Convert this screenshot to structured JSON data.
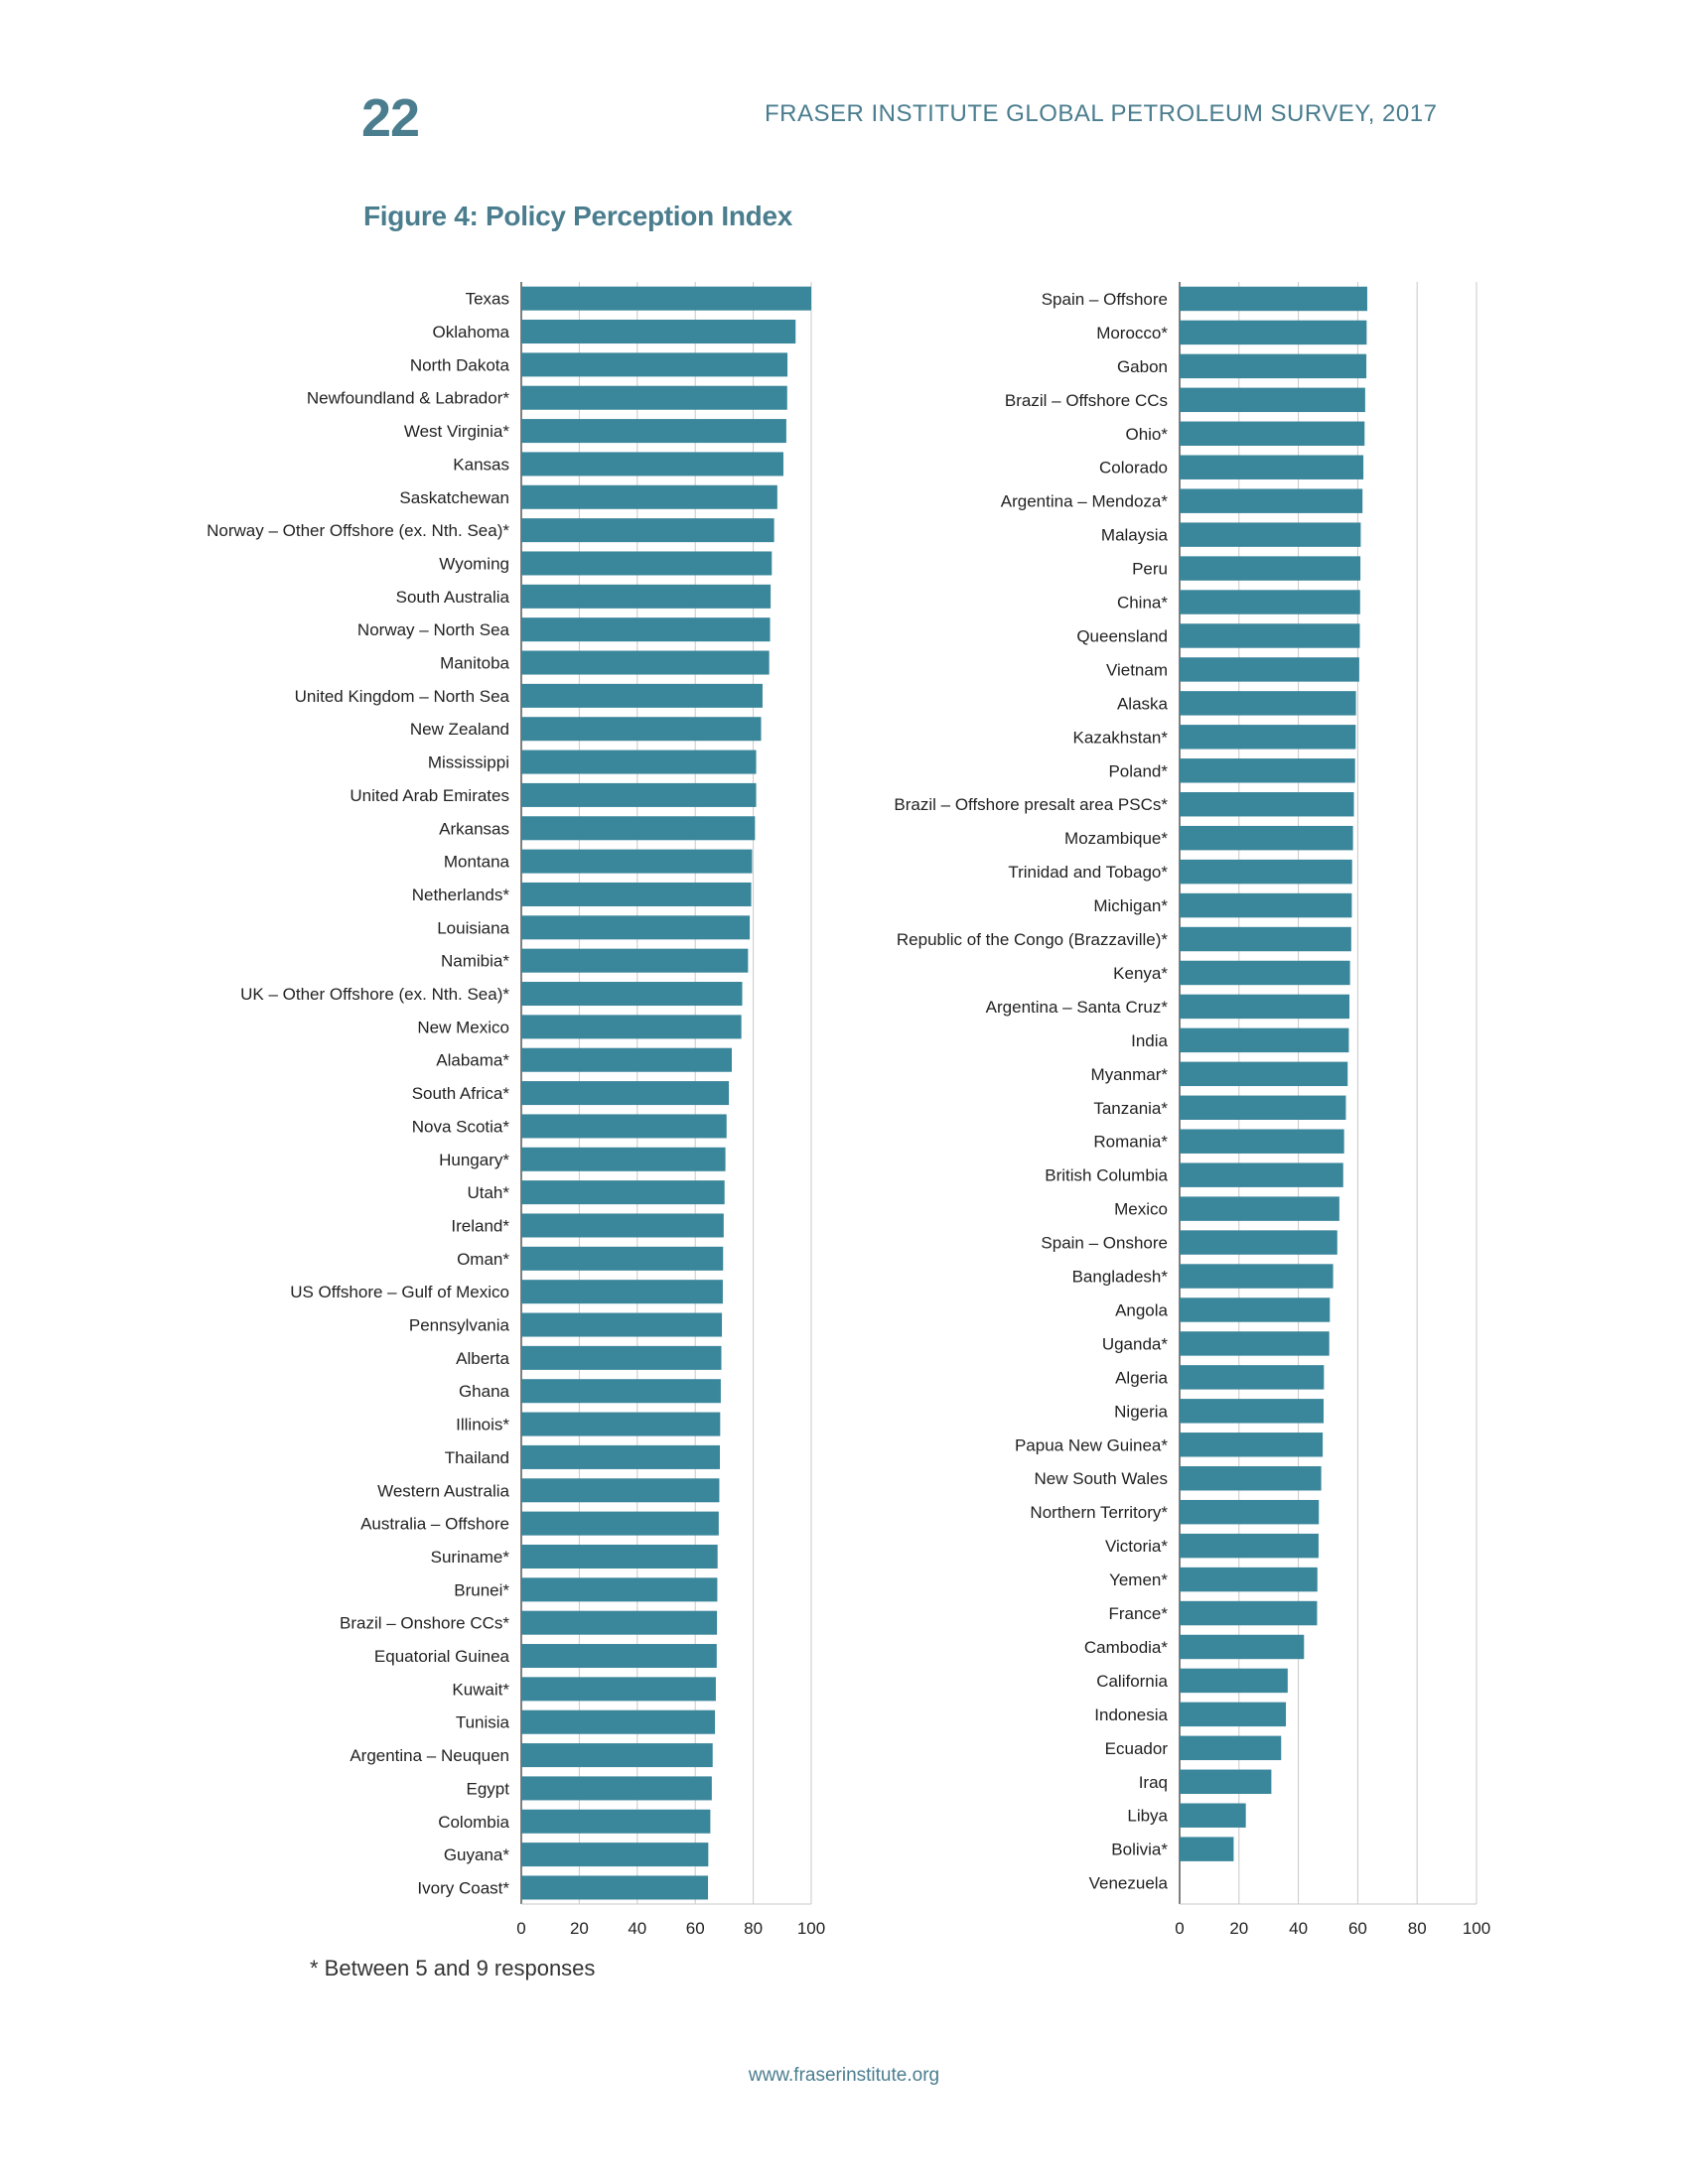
{
  "header": {
    "page_number": "22",
    "running_head": "FRASER INSTITUTE GLOBAL PETROLEUM SURVEY, 2017"
  },
  "figure": {
    "title": "Figure 4: Policy Perception Index"
  },
  "footnote": "* Between 5 and 9 responses",
  "footer": {
    "url": "www.fraserinstitute.org"
  },
  "colors": {
    "bar": "#3a869b",
    "accent_text": "#4a7d8e",
    "grid": "#c8c8c8",
    "axis": "#555555"
  },
  "chart_data": [
    {
      "type": "bar",
      "orientation": "horizontal",
      "xlim": [
        0,
        100
      ],
      "xticks": [
        "0",
        "20",
        "40",
        "60",
        "80",
        "100"
      ],
      "grid": true,
      "categories": [
        "Texas",
        "Oklahoma",
        "North Dakota",
        "Newfoundland & Labrador*",
        "West Virginia*",
        "Kansas",
        "Saskatchewan",
        "Norway – Other Offshore (ex. Nth. Sea)*",
        "Wyoming",
        "South Australia",
        "Norway – North Sea",
        "Manitoba",
        "United Kingdom – North Sea",
        "New Zealand",
        "Mississippi",
        "United Arab Emirates",
        "Arkansas",
        "Montana",
        "Netherlands*",
        "Louisiana",
        "Namibia*",
        "UK – Other Offshore (ex. Nth. Sea)*",
        "New Mexico",
        "Alabama*",
        "South Africa*",
        "Nova Scotia*",
        "Hungary*",
        "Utah*",
        "Ireland*",
        "Oman*",
        "US Offshore – Gulf of Mexico",
        "Pennsylvania",
        "Alberta",
        "Ghana",
        "Illinois*",
        "Thailand",
        "Western Australia",
        "Australia – Offshore",
        "Suriname*",
        "Brunei*",
        "Brazil – Onshore CCs*",
        "Equatorial Guinea",
        "Kuwait*",
        "Tunisia",
        "Argentina – Neuquen",
        "Egypt",
        "Colombia",
        "Guyana*",
        "Ivory Coast*"
      ],
      "values": [
        100,
        94.6,
        91.8,
        91.7,
        91.4,
        90.4,
        88.3,
        87.2,
        86.4,
        86.0,
        85.8,
        85.5,
        83.2,
        82.7,
        81.0,
        81.0,
        80.6,
        79.6,
        79.3,
        78.8,
        78.2,
        76.2,
        75.9,
        72.6,
        71.6,
        70.8,
        70.4,
        70.1,
        69.8,
        69.6,
        69.5,
        69.2,
        69.0,
        68.8,
        68.6,
        68.5,
        68.3,
        68.1,
        67.7,
        67.6,
        67.5,
        67.4,
        67.1,
        66.8,
        66.0,
        65.7,
        65.2,
        64.5,
        64.4
      ]
    },
    {
      "type": "bar",
      "orientation": "horizontal",
      "xlim": [
        0,
        100
      ],
      "xticks": [
        "0",
        "20",
        "40",
        "60",
        "80",
        "100"
      ],
      "grid": true,
      "categories": [
        "Spain – Offshore",
        "Morocco*",
        "Gabon",
        "Brazil – Offshore CCs",
        "Ohio*",
        "Colorado",
        "Argentina – Mendoza*",
        "Malaysia",
        "Peru",
        "China*",
        "Queensland",
        "Vietnam",
        "Alaska",
        "Kazakhstan*",
        "Poland*",
        "Brazil – Offshore presalt area PSCs*",
        "Mozambique*",
        "Trinidad and Tobago*",
        "Michigan*",
        "Republic of the Congo (Brazzaville)*",
        "Kenya*",
        "Argentina – Santa Cruz*",
        "India",
        "Myanmar*",
        "Tanzania*",
        "Romania*",
        "British Columbia",
        "Mexico",
        "Spain – Onshore",
        "Bangladesh*",
        "Angola",
        "Uganda*",
        "Algeria",
        "Nigeria",
        "Papua New Guinea*",
        "New South Wales",
        "Northern Territory*",
        "Victoria*",
        "Yemen*",
        "France*",
        "Cambodia*",
        "California",
        "Indonesia",
        "Ecuador",
        "Iraq",
        "Libya",
        "Bolivia*",
        "Venezuela"
      ],
      "values": [
        63.2,
        63.0,
        62.9,
        62.5,
        62.3,
        61.9,
        61.6,
        61.0,
        60.9,
        60.8,
        60.7,
        60.5,
        59.4,
        59.3,
        59.1,
        58.7,
        58.4,
        58.1,
        58.0,
        57.8,
        57.4,
        57.2,
        57.0,
        56.6,
        56.0,
        55.4,
        55.1,
        53.8,
        53.1,
        51.7,
        50.6,
        50.4,
        48.6,
        48.5,
        48.2,
        47.7,
        46.9,
        46.8,
        46.4,
        46.3,
        41.9,
        36.4,
        35.8,
        34.2,
        30.9,
        22.3,
        18.2,
        0
      ]
    }
  ]
}
